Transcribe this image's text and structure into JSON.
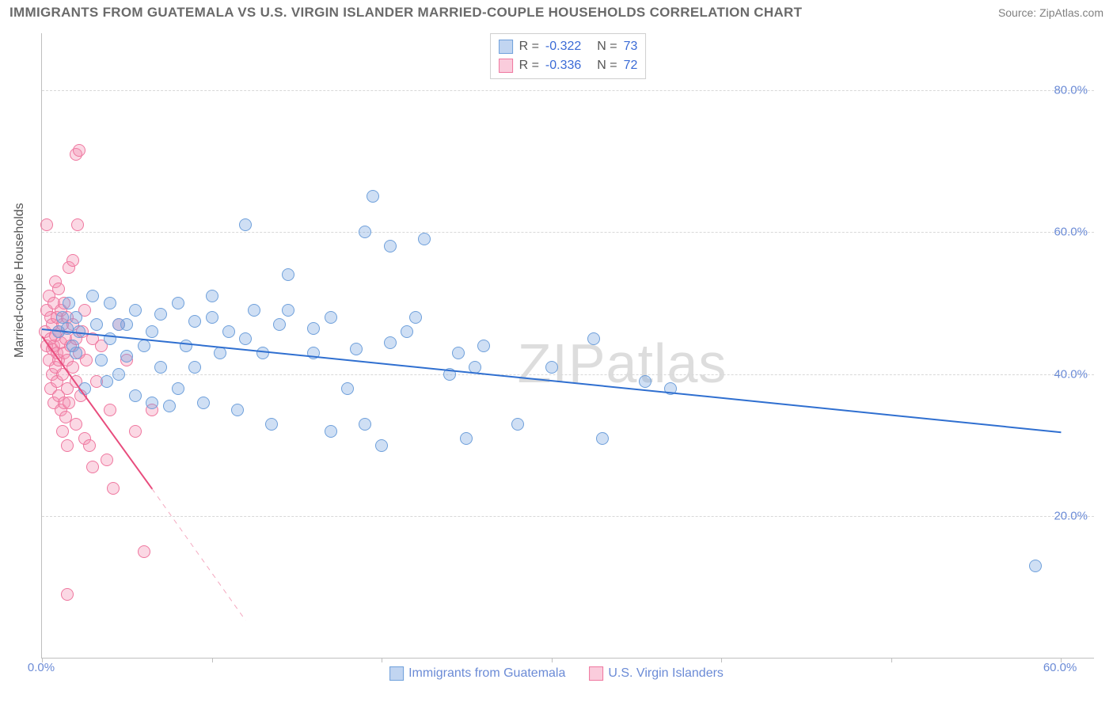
{
  "title": "IMMIGRANTS FROM GUATEMALA VS U.S. VIRGIN ISLANDER MARRIED-COUPLE HOUSEHOLDS CORRELATION CHART",
  "source": "Source: ZipAtlas.com",
  "watermark": "ZIPatlas",
  "ylabel": "Married-couple Households",
  "chart": {
    "type": "scatter",
    "xlim": [
      0,
      62
    ],
    "ylim": [
      0,
      88
    ],
    "xticks": [
      0,
      10,
      20,
      30,
      40,
      50,
      60
    ],
    "xtick_labels": [
      "0.0%",
      "",
      "",
      "",
      "",
      "",
      "60.0%"
    ],
    "yticks": [
      20,
      40,
      60,
      80
    ],
    "ytick_labels": [
      "20.0%",
      "40.0%",
      "60.0%",
      "80.0%"
    ],
    "grid_color": "#d8d8d8",
    "axis_color": "#bfbfbf",
    "background_color": "#ffffff",
    "tick_label_color": "#6b8bd6",
    "tick_label_fontsize": 15,
    "axis_label_color": "#555555",
    "axis_label_fontsize": 16
  },
  "series": [
    {
      "name": "Immigrants from Guatemala",
      "color_fill": "rgba(117,162,224,0.35)",
      "color_stroke": "#6fa0db",
      "marker_size": 16,
      "R": "-0.322",
      "N": "73",
      "regression": {
        "x1": 0,
        "y1": 46.5,
        "x2": 60,
        "y2": 32,
        "color": "#2f6fd0",
        "width": 2,
        "dash": "solid"
      },
      "regression_ext": null,
      "points": [
        [
          1.0,
          46
        ],
        [
          1.2,
          48
        ],
        [
          1.5,
          46.5
        ],
        [
          1.6,
          50
        ],
        [
          1.8,
          44
        ],
        [
          2.0,
          43
        ],
        [
          2.0,
          48
        ],
        [
          2.2,
          46
        ],
        [
          2.5,
          38
        ],
        [
          3.0,
          51
        ],
        [
          3.2,
          47
        ],
        [
          3.5,
          42
        ],
        [
          3.8,
          39
        ],
        [
          4.0,
          45
        ],
        [
          4.0,
          50
        ],
        [
          4.5,
          40
        ],
        [
          4.5,
          47
        ],
        [
          5.0,
          42.5
        ],
        [
          5.0,
          47
        ],
        [
          5.5,
          37
        ],
        [
          5.5,
          49
        ],
        [
          6.0,
          44
        ],
        [
          6.5,
          36
        ],
        [
          6.5,
          46
        ],
        [
          7.0,
          41
        ],
        [
          7.0,
          48.5
        ],
        [
          7.5,
          35.5
        ],
        [
          8.0,
          38
        ],
        [
          8.0,
          50
        ],
        [
          8.5,
          44
        ],
        [
          9.0,
          41
        ],
        [
          9.0,
          47.5
        ],
        [
          9.5,
          36
        ],
        [
          10.0,
          48
        ],
        [
          10.0,
          51
        ],
        [
          10.5,
          43
        ],
        [
          11.0,
          46
        ],
        [
          11.5,
          35
        ],
        [
          12.0,
          45
        ],
        [
          12.0,
          61
        ],
        [
          12.5,
          49
        ],
        [
          13.0,
          43
        ],
        [
          13.5,
          33
        ],
        [
          14.0,
          47
        ],
        [
          14.5,
          49
        ],
        [
          14.5,
          54
        ],
        [
          16.0,
          43
        ],
        [
          16.0,
          46.5
        ],
        [
          17.0,
          32
        ],
        [
          17.0,
          48
        ],
        [
          18.0,
          38
        ],
        [
          18.5,
          43.5
        ],
        [
          19.0,
          33
        ],
        [
          19.0,
          60
        ],
        [
          19.5,
          65
        ],
        [
          20.0,
          30
        ],
        [
          20.5,
          44.5
        ],
        [
          20.5,
          58
        ],
        [
          21.5,
          46
        ],
        [
          22.0,
          48
        ],
        [
          22.5,
          59
        ],
        [
          24.0,
          40
        ],
        [
          24.5,
          43
        ],
        [
          25.0,
          31
        ],
        [
          25.5,
          41
        ],
        [
          26.0,
          44
        ],
        [
          28.0,
          33
        ],
        [
          30.0,
          41
        ],
        [
          32.5,
          45
        ],
        [
          33.0,
          31
        ],
        [
          35.5,
          39
        ],
        [
          37.0,
          38
        ],
        [
          58.5,
          13
        ]
      ]
    },
    {
      "name": "U.S. Virgin Islanders",
      "color_fill": "rgba(244,143,177,0.35)",
      "color_stroke": "#ef779f",
      "marker_size": 16,
      "R": "-0.336",
      "N": "72",
      "regression": {
        "x1": 0,
        "y1": 45.5,
        "x2": 6.5,
        "y2": 24,
        "color": "#e84c7d",
        "width": 2,
        "dash": "solid"
      },
      "regression_ext": {
        "x1": 6.5,
        "y1": 24,
        "x2": 12,
        "y2": 5.5,
        "color": "#f4a8bf",
        "width": 1,
        "dash": "dashed"
      },
      "points": [
        [
          0.2,
          46
        ],
        [
          0.3,
          44
        ],
        [
          0.3,
          49
        ],
        [
          0.4,
          42
        ],
        [
          0.4,
          51
        ],
        [
          0.5,
          38
        ],
        [
          0.5,
          45
        ],
        [
          0.5,
          48
        ],
        [
          0.6,
          40
        ],
        [
          0.6,
          43.5
        ],
        [
          0.6,
          47
        ],
        [
          0.7,
          36
        ],
        [
          0.7,
          44
        ],
        [
          0.7,
          50
        ],
        [
          0.8,
          41
        ],
        [
          0.8,
          45.5
        ],
        [
          0.8,
          53
        ],
        [
          0.9,
          39
        ],
        [
          0.9,
          43
        ],
        [
          0.9,
          48
        ],
        [
          1.0,
          37
        ],
        [
          1.0,
          42
        ],
        [
          1.0,
          46
        ],
        [
          1.0,
          52
        ],
        [
          1.1,
          35
        ],
        [
          1.1,
          44.5
        ],
        [
          1.1,
          49
        ],
        [
          1.2,
          32
        ],
        [
          1.2,
          40
        ],
        [
          1.2,
          47
        ],
        [
          1.3,
          36
        ],
        [
          1.3,
          43
        ],
        [
          1.3,
          50
        ],
        [
          1.4,
          34
        ],
        [
          1.4,
          45
        ],
        [
          1.5,
          30
        ],
        [
          1.5,
          38
        ],
        [
          1.5,
          42
        ],
        [
          1.5,
          48
        ],
        [
          1.6,
          36
        ],
        [
          1.6,
          55
        ],
        [
          1.7,
          44
        ],
        [
          1.8,
          41
        ],
        [
          1.8,
          47
        ],
        [
          1.8,
          56
        ],
        [
          2.0,
          33
        ],
        [
          2.0,
          39
        ],
        [
          2.0,
          45
        ],
        [
          2.0,
          71
        ],
        [
          2.1,
          61
        ],
        [
          2.2,
          71.5
        ],
        [
          2.2,
          43
        ],
        [
          2.3,
          37
        ],
        [
          2.4,
          46
        ],
        [
          2.5,
          31
        ],
        [
          2.5,
          49
        ],
        [
          2.6,
          42
        ],
        [
          2.8,
          30
        ],
        [
          3.0,
          27
        ],
        [
          3.0,
          45
        ],
        [
          3.2,
          39
        ],
        [
          3.5,
          44
        ],
        [
          3.8,
          28
        ],
        [
          4.0,
          35
        ],
        [
          4.2,
          24
        ],
        [
          4.5,
          47
        ],
        [
          5.0,
          42
        ],
        [
          5.5,
          32
        ],
        [
          6.0,
          15
        ],
        [
          6.5,
          35
        ],
        [
          1.5,
          9
        ],
        [
          0.3,
          61
        ]
      ]
    }
  ],
  "legend_top": {
    "rows": [
      {
        "swatch_fill": "rgba(117,162,224,0.45)",
        "swatch_stroke": "#6fa0db",
        "R_label": "R =",
        "R_val": "-0.322",
        "N_label": "N =",
        "N_val": "73"
      },
      {
        "swatch_fill": "rgba(244,143,177,0.45)",
        "swatch_stroke": "#ef779f",
        "R_label": "R =",
        "R_val": "-0.336",
        "N_label": "N =",
        "N_val": "72"
      }
    ]
  },
  "legend_bottom": [
    {
      "swatch_fill": "rgba(117,162,224,0.45)",
      "swatch_stroke": "#6fa0db",
      "label": "Immigrants from Guatemala"
    },
    {
      "swatch_fill": "rgba(244,143,177,0.45)",
      "swatch_stroke": "#ef779f",
      "label": "U.S. Virgin Islanders"
    }
  ]
}
